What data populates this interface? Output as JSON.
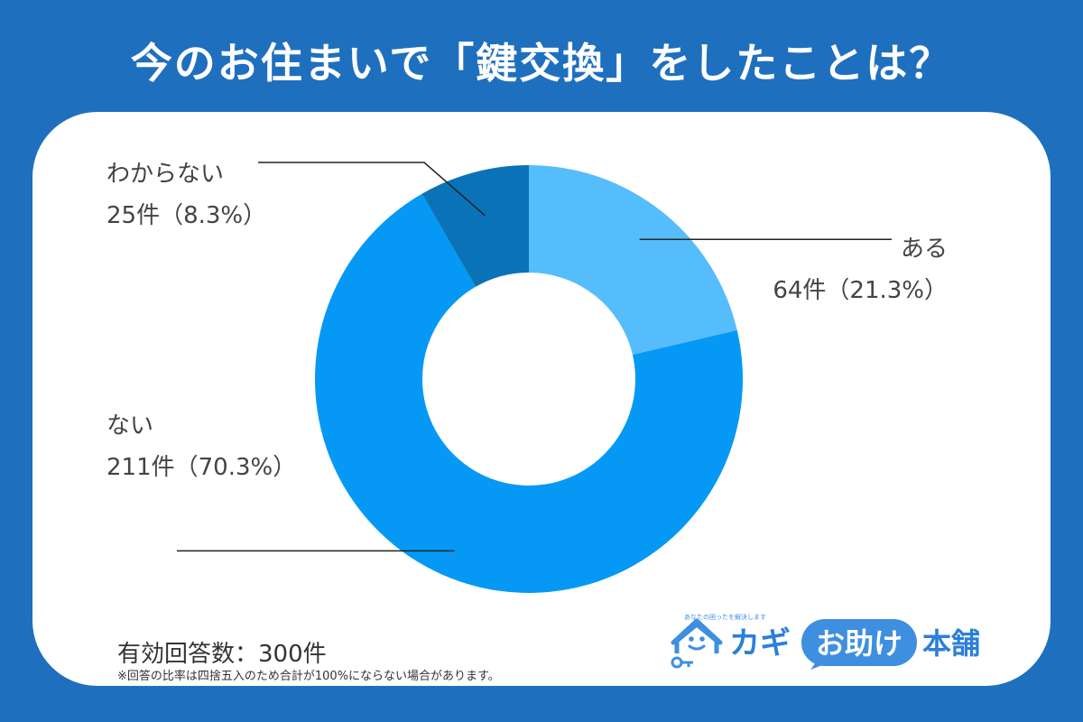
{
  "title": "今のお住まいで「鍵交換」をしたことは？",
  "chart_data": {
    "type": "pie",
    "style": "donut",
    "categories": [
      "ある",
      "ない",
      "わからない"
    ],
    "values": [
      64,
      211,
      25
    ],
    "percent_labels": [
      "21.3%",
      "70.3%",
      "8.3%"
    ],
    "value_labels": [
      "64件（21.3%）",
      "211件（70.3%）",
      "25件（8.3%）"
    ],
    "colors": [
      "#56bdfc",
      "#0599f5",
      "#0a73b8"
    ]
  },
  "footer": {
    "total": "有効回答数：300件",
    "note": "※回答の比率は四捨五入のため合計が100%にならない場合があります。"
  },
  "logo": {
    "brand_kana": "カギ",
    "brand_badge": "お助け",
    "brand_suffix": "本舗",
    "tagline": "あなたの困ったを解決します",
    "icon": "house-key-icon",
    "colors": {
      "primary": "#3e8fe0",
      "text": "#2b7fd8"
    }
  }
}
